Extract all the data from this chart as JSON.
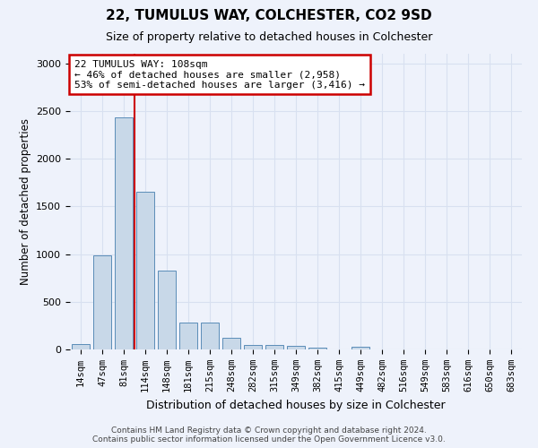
{
  "title": "22, TUMULUS WAY, COLCHESTER, CO2 9SD",
  "subtitle": "Size of property relative to detached houses in Colchester",
  "xlabel": "Distribution of detached houses by size in Colchester",
  "ylabel": "Number of detached properties",
  "categories": [
    "14sqm",
    "47sqm",
    "81sqm",
    "114sqm",
    "148sqm",
    "181sqm",
    "215sqm",
    "248sqm",
    "282sqm",
    "315sqm",
    "349sqm",
    "382sqm",
    "415sqm",
    "449sqm",
    "482sqm",
    "516sqm",
    "549sqm",
    "583sqm",
    "616sqm",
    "650sqm",
    "683sqm"
  ],
  "values": [
    55,
    990,
    2430,
    1650,
    830,
    285,
    280,
    120,
    50,
    50,
    35,
    20,
    0,
    30,
    0,
    0,
    0,
    0,
    0,
    0,
    0
  ],
  "bar_color": "#c8d8e8",
  "bar_edgecolor": "#5b8db8",
  "vline_x": 2.5,
  "vline_color": "#cc0000",
  "annotation_text1": "22 TUMULUS WAY: 108sqm",
  "annotation_text2": "← 46% of detached houses are smaller (2,958)",
  "annotation_text3": "53% of semi-detached houses are larger (3,416) →",
  "annotation_box_color": "#ffffff",
  "annotation_border_color": "#cc0000",
  "grid_color": "#d8e0f0",
  "background_color": "#eef2fb",
  "ylim": [
    0,
    3100
  ],
  "yticks": [
    0,
    500,
    1000,
    1500,
    2000,
    2500,
    3000
  ],
  "footer1": "Contains HM Land Registry data © Crown copyright and database right 2024.",
  "footer2": "Contains public sector information licensed under the Open Government Licence v3.0."
}
